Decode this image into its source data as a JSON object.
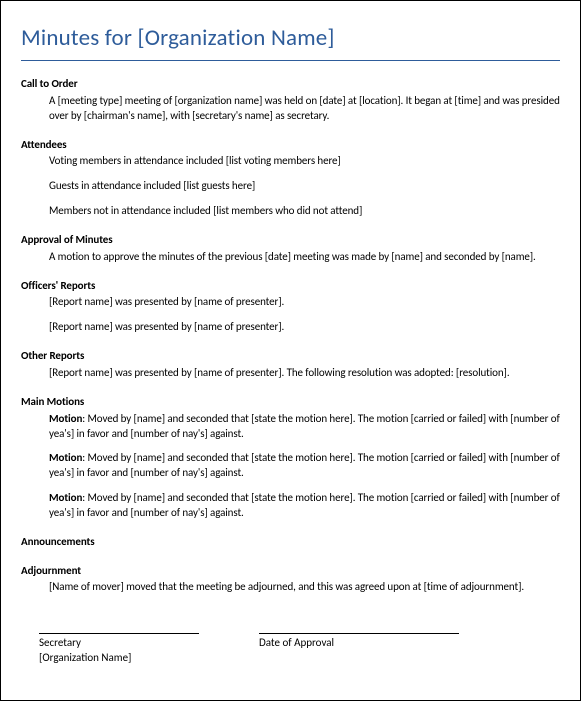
{
  "title": "Minutes for [Organization Name]",
  "sections": {
    "callToOrder": {
      "heading": "Call to Order",
      "body": "A [meeting type] meeting of [organization name] was held on [date] at [location]. It began at [time] and was presided over by [chairman's name], with [secretary's name] as secretary."
    },
    "attendees": {
      "heading": "Attendees",
      "p1": "Voting members in attendance included [list voting members here]",
      "p2": "Guests in attendance included [list guests here]",
      "p3": "Members not in attendance included [list members who did not attend]"
    },
    "approval": {
      "heading": "Approval of Minutes",
      "body": "A motion to approve the minutes of the previous [date] meeting was made by [name] and seconded by [name]."
    },
    "officers": {
      "heading": "Officers' Reports",
      "p1": "[Report name] was presented by [name of presenter].",
      "p2": "[Report name] was presented by [name of presenter]."
    },
    "other": {
      "heading": "Other Reports",
      "body": "[Report name] was presented by [name of presenter]. The following resolution was adopted: [resolution]."
    },
    "motions": {
      "heading": "Main Motions",
      "label": "Motion",
      "m1": ": Moved by [name] and seconded that [state the motion here]. The motion [carried or failed] with [number of yea's] in favor and [number of nay's] against.",
      "m2": ": Moved by [name] and seconded that [state the motion here]. The motion [carried or failed] with [number of yea's] in favor and [number of nay's] against.",
      "m3": ": Moved by [name] and seconded that [state the motion here]. The motion [carried or failed] with [number of yea's] in favor and [number of nay's] against."
    },
    "announcements": {
      "heading": "Announcements"
    },
    "adjournment": {
      "heading": "Adjournment",
      "body": "[Name of mover] moved that the meeting be adjourned, and this was agreed upon at [time of adjournment]."
    }
  },
  "signatures": {
    "secretary": "Secretary",
    "org": "[Organization Name]",
    "approval": "Date of Approval"
  }
}
